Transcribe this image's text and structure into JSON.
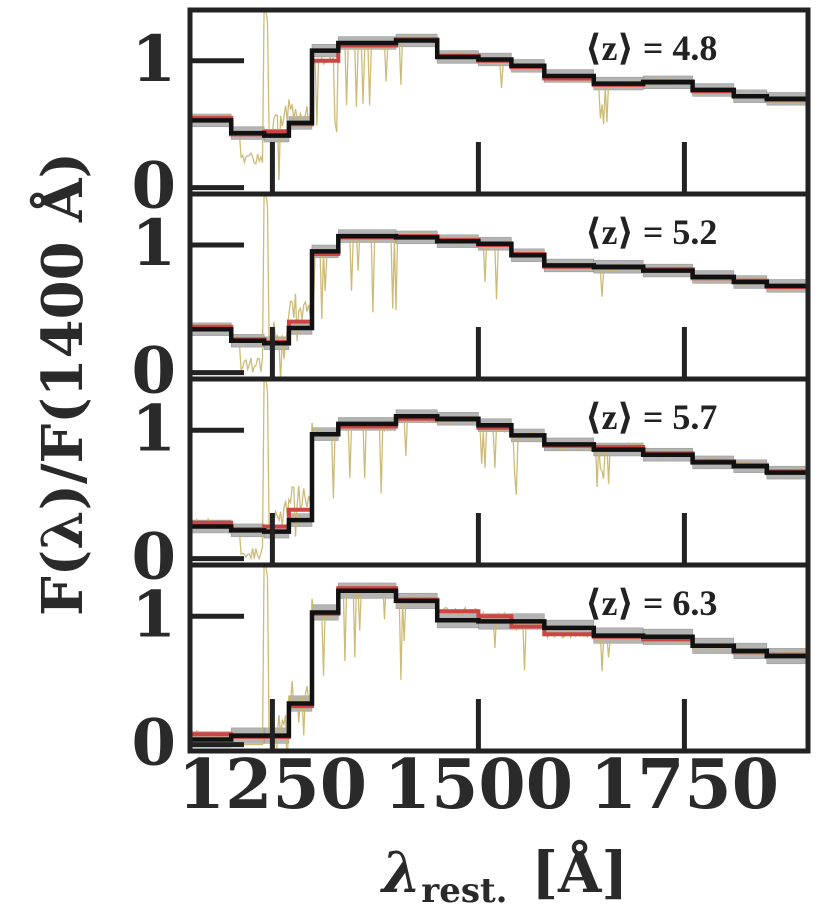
{
  "chart_data": {
    "type": "line",
    "ylabel": "F(λ)/F(1400 Å)",
    "xlabel_symbol": "λ",
    "xlabel_sub": "rest.",
    "xlabel_unit": "[Å]",
    "xlim": [
      1150,
      1900
    ],
    "ylim": [
      -0.05,
      1.4
    ],
    "xticks": [
      1250,
      1500,
      1750
    ],
    "xtick_labels": [
      "1250",
      "1500",
      "1750"
    ],
    "yticks": [
      0,
      1
    ],
    "ytick_labels": [
      "0",
      "1"
    ],
    "colors": {
      "black": "#111111",
      "red": "#cc4444",
      "band": "#a8a8a8",
      "spectrum": "#c8b46a",
      "frame": "#222222"
    },
    "panels": [
      {
        "annotation": "⟨z⟩ = 4.8",
        "bins": [
          1150,
          1200,
          1240,
          1270,
          1298,
          1330,
          1400,
          1450,
          1500,
          1540,
          1580,
          1640,
          1700,
          1760,
          1810,
          1850,
          1900
        ],
        "black": [
          0.53,
          0.43,
          0.41,
          0.51,
          1.08,
          1.14,
          1.16,
          1.03,
          1.01,
          0.96,
          0.88,
          0.82,
          0.83,
          0.77,
          0.72,
          0.7,
          0.64
        ],
        "red": [
          0.55,
          0.42,
          0.44,
          0.5,
          1.0,
          1.12,
          1.17,
          1.04,
          1.0,
          0.95,
          0.86,
          0.81,
          0.84,
          0.76,
          0.72,
          0.69,
          0.63
        ],
        "band": 0.05
      },
      {
        "annotation": "⟨z⟩ = 5.2",
        "bins": [
          1150,
          1200,
          1240,
          1270,
          1298,
          1330,
          1400,
          1450,
          1500,
          1540,
          1580,
          1640,
          1700,
          1760,
          1810,
          1850,
          1900
        ],
        "black": [
          0.34,
          0.25,
          0.23,
          0.35,
          0.95,
          1.07,
          1.06,
          1.03,
          1.01,
          0.92,
          0.84,
          0.83,
          0.8,
          0.75,
          0.71,
          0.68,
          0.63
        ],
        "red": [
          0.36,
          0.26,
          0.24,
          0.4,
          0.93,
          1.06,
          1.07,
          1.04,
          1.0,
          0.93,
          0.83,
          0.82,
          0.81,
          0.74,
          0.72,
          0.67,
          0.62
        ],
        "band": 0.05
      },
      {
        "annotation": "⟨z⟩ = 5.7",
        "bins": [
          1150,
          1200,
          1240,
          1270,
          1298,
          1330,
          1400,
          1450,
          1500,
          1540,
          1580,
          1640,
          1700,
          1760,
          1810,
          1850,
          1900
        ],
        "black": [
          0.25,
          0.22,
          0.21,
          0.3,
          0.97,
          1.05,
          1.11,
          1.09,
          1.04,
          0.96,
          0.89,
          0.85,
          0.81,
          0.75,
          0.72,
          0.67,
          0.63
        ],
        "red": [
          0.28,
          0.23,
          0.25,
          0.38,
          0.97,
          1.03,
          1.09,
          1.08,
          1.02,
          0.96,
          0.88,
          0.87,
          0.82,
          0.76,
          0.73,
          0.68,
          0.62
        ],
        "band": 0.05
      },
      {
        "annotation": "⟨z⟩ = 6.3",
        "bins": [
          1150,
          1200,
          1240,
          1270,
          1298,
          1330,
          1400,
          1450,
          1500,
          1540,
          1580,
          1640,
          1700,
          1760,
          1810,
          1850,
          1900
        ],
        "black": [
          0.04,
          0.07,
          0.07,
          0.32,
          1.03,
          1.2,
          1.12,
          0.97,
          0.96,
          0.96,
          0.91,
          0.85,
          0.84,
          0.77,
          0.73,
          0.69,
          0.64
        ],
        "red": [
          0.08,
          0.06,
          0.06,
          0.3,
          1.02,
          1.22,
          1.13,
          1.04,
          1.0,
          0.92,
          0.86,
          0.84,
          0.82,
          0.77,
          0.72,
          0.7,
          0.66
        ],
        "band": 0.06
      }
    ]
  }
}
